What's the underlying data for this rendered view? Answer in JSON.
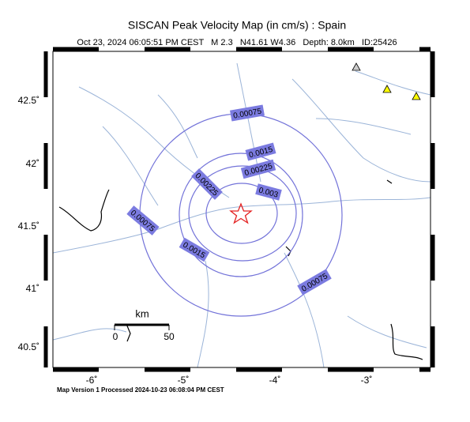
{
  "header": {
    "title": "SISCAN Peak Velocity Map (in cm/s) : Spain",
    "subtitle": "Oct 23, 2024 06:05:51 PM CEST   M 2.3   N41.61 W4.36   Depth: 8.0km   ID:25426"
  },
  "map": {
    "lon_ticks": [
      "-6˚",
      "-5˚",
      "-4˚",
      "-3˚"
    ],
    "lat_ticks": [
      "42.5˚",
      "42˚",
      "41.5˚",
      "41˚",
      "40.5˚"
    ],
    "contour_labels": [
      "0.00075",
      "0.0015",
      "0.00225",
      "0.003",
      "0.00225",
      "0.00075",
      "0.0015",
      "0.00075"
    ],
    "scale": {
      "title": "km",
      "labels": [
        "0",
        "50"
      ]
    }
  },
  "footer": "Map Version 1 Processed 2024-10-23 06:08:04 PM CEST"
}
